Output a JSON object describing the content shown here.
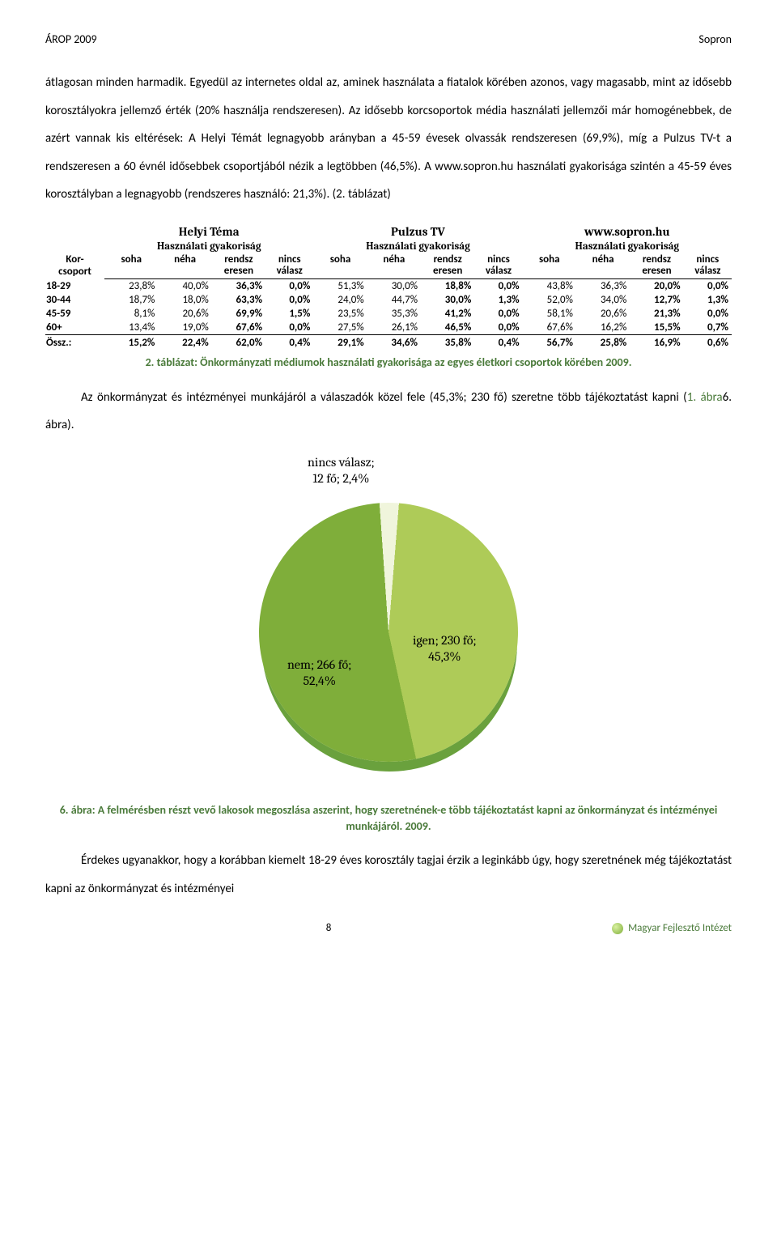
{
  "header": {
    "left": "ÁROP 2009",
    "right": "Sopron"
  },
  "para1": "átlagosan minden harmadik. Egyedül az internetes oldal az, aminek használata a fiatalok körében azonos, vagy magasabb, mint az idősebb korosztályokra jellemző érték (20% használja rendszeresen). Az idősebb korcsoportok média használati jellemzői már homogénebbek, de azért vannak kis eltérések: A Helyi Témát legnagyobb arányban a 45-59 évesek olvassák rendszeresen (69,9%), míg a Pulzus TV-t a rendszeresen a 60 évnél idősebbek csoportjából nézik a legtöbben (46,5%). A www.sopron.hu használati gyakorisága szintén a 45-59 éves korosztályban a legnagyobb (rendszeres használó: 21,3%). (2. táblázat)",
  "table": {
    "korcsoport_label": "Kor-\ncsoport",
    "media": [
      "Helyi Téma",
      "Pulzus TV",
      "www.sopron.hu"
    ],
    "freq_header": "Használati gyakoriság",
    "cols": [
      "soha",
      "néha",
      "rendsz\neresen",
      "nincs\nválasz"
    ],
    "rows": [
      {
        "label": "18-29",
        "helyi": [
          "23,8%",
          "40,0%",
          "36,3%",
          "0,0%"
        ],
        "pulzus": [
          "51,3%",
          "30,0%",
          "18,8%",
          "0,0%"
        ],
        "web": [
          "43,8%",
          "36,3%",
          "20,0%",
          "0,0%"
        ]
      },
      {
        "label": "30-44",
        "helyi": [
          "18,7%",
          "18,0%",
          "63,3%",
          "0,0%"
        ],
        "pulzus": [
          "24,0%",
          "44,7%",
          "30,0%",
          "1,3%"
        ],
        "web": [
          "52,0%",
          "34,0%",
          "12,7%",
          "1,3%"
        ]
      },
      {
        "label": "45-59",
        "helyi": [
          "8,1%",
          "20,6%",
          "69,9%",
          "1,5%"
        ],
        "pulzus": [
          "23,5%",
          "35,3%",
          "41,2%",
          "0,0%"
        ],
        "web": [
          "58,1%",
          "20,6%",
          "21,3%",
          "0,0%"
        ]
      },
      {
        "label": "60+",
        "helyi": [
          "13,4%",
          "19,0%",
          "67,6%",
          "0,0%"
        ],
        "pulzus": [
          "27,5%",
          "26,1%",
          "46,5%",
          "0,0%"
        ],
        "web": [
          "67,6%",
          "16,2%",
          "15,5%",
          "0,7%"
        ]
      }
    ],
    "sum_label": "Össz.:",
    "sum": {
      "helyi": [
        "15,2%",
        "22,4%",
        "62,0%",
        "0,4%"
      ],
      "pulzus": [
        "29,1%",
        "34,6%",
        "35,8%",
        "0,4%"
      ],
      "web": [
        "56,7%",
        "25,8%",
        "16,9%",
        "0,6%"
      ]
    }
  },
  "table_caption": "2. táblázat: Önkormányzati médiumok használati gyakorisága az egyes életkori csoportok körében 2009.",
  "para2_a": "Az önkormányzat és intézményei munkájáról a válaszadók közel fele (45,3%; 230 fő) szeretne több tájékoztatást kapni (",
  "para2_link": "1. ábra",
  "para2_b": "6. ábra).",
  "pie": {
    "slices": {
      "nincs": {
        "label_line1": "nincs válasz;",
        "label_line2": "12 fő; 2,4%",
        "pct": 2.4,
        "color": "#f0f5dc"
      },
      "igen": {
        "label_line1": "igen; 230 fő;",
        "label_line2": "45,3%",
        "pct": 45.3,
        "color": "#aecb58"
      },
      "nem": {
        "label_line1": "nem; 266 fő;",
        "label_line2": "52,4%",
        "pct": 52.4,
        "color": "#7fae3a"
      }
    },
    "label_fontsize": 16,
    "label_font": "Cambria"
  },
  "pie_caption": "6. ábra: A felmérésben részt vevő lakosok megoszlása aszerint, hogy szeretnének-e több tájékoztatást kapni az önkormányzat és intézményei munkájáról. 2009.",
  "para3": "Érdekes ugyanakkor, hogy a korábban kiemelt 18-29 éves korosztály tagjai érzik a leginkább úgy, hogy szeretnének még tájékoztatást kapni az önkormányzat és intézményei",
  "footer": {
    "page": "8",
    "org": "Magyar Fejlesztő Intézet"
  }
}
